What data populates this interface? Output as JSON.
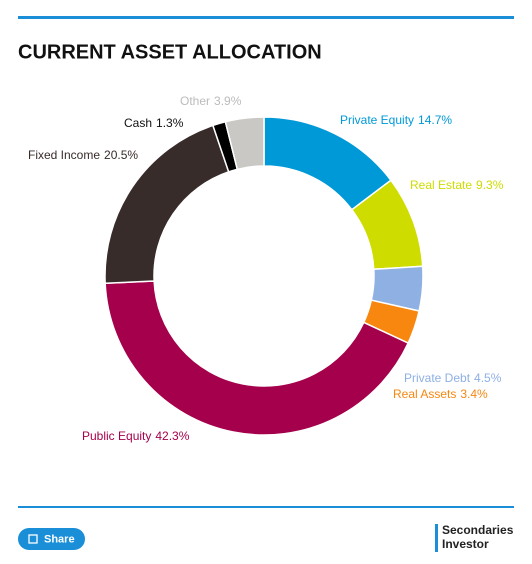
{
  "chart_data": {
    "type": "donut",
    "title": "CURRENT ASSET ALLOCATION",
    "categories": [
      "Private Equity",
      "Real Estate",
      "Private Debt",
      "Real Assets",
      "Public Equity",
      "Fixed Income",
      "Cash",
      "Other"
    ],
    "values": [
      14.7,
      9.3,
      4.5,
      3.4,
      42.3,
      20.5,
      1.3,
      3.9
    ],
    "value_labels": [
      "14.7%",
      "9.3%",
      "4.5%",
      "3.4%",
      "42.3%",
      "20.5%",
      "1.3%",
      "3.9%"
    ],
    "colors": [
      "#0099d8",
      "#cedc00",
      "#8eb0e3",
      "#f7870f",
      "#a5004b",
      "#372c2a",
      "#000000",
      "#c9c8c5"
    ]
  },
  "footer": {
    "share": "Share",
    "logo": [
      "Secondaries",
      "Investor"
    ]
  }
}
